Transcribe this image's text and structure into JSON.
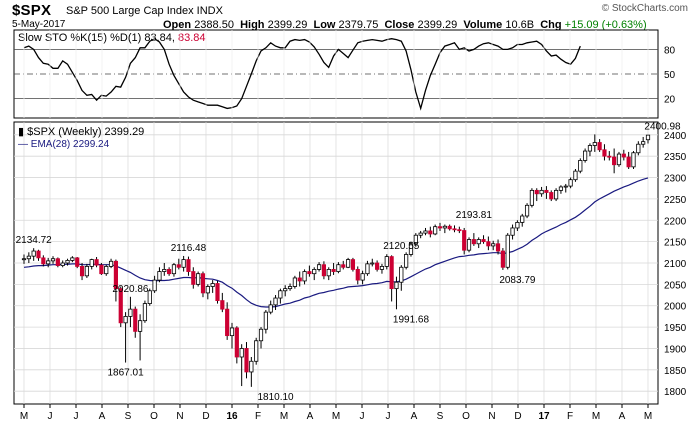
{
  "header": {
    "symbol": "$SPX",
    "name": "S&P 500 Large Cap Index INDX",
    "date": "5-May-2017",
    "copyright": "© StockCharts.com",
    "open_label": "Open",
    "open": "2388.50",
    "high_label": "High",
    "high": "2399.29",
    "low_label": "Low",
    "low": "2379.75",
    "close_label": "Close",
    "close": "2399.29",
    "volume_label": "Volume",
    "volume": "10.6B",
    "chg_label": "Chg",
    "chg": "+15.09 (+0.63%)"
  },
  "colors": {
    "up_body": "#ffffff",
    "down_body": "#cc0033",
    "ema": "#1a1a80",
    "sto": "#000000",
    "sto_value": "#cc0033",
    "grid": "#d8d8d8",
    "axis": "#000000"
  },
  "chart_data": [
    {
      "type": "line",
      "name": "Slow STO",
      "legend": "Slow STO %K(15) %D(1) 83.84,",
      "legend_value": "83.84",
      "ylim": [
        0,
        100
      ],
      "yticks": [
        20,
        50,
        80
      ],
      "values": [
        82,
        84,
        80,
        70,
        63,
        62,
        57,
        57,
        66,
        62,
        52,
        42,
        30,
        24,
        25,
        18,
        24,
        23,
        28,
        35,
        34,
        46,
        63,
        70,
        82,
        82,
        90,
        93,
        89,
        80,
        62,
        48,
        38,
        28,
        22,
        18,
        16,
        14,
        12,
        12,
        12,
        10,
        8,
        9,
        11,
        20,
        35,
        50,
        66,
        78,
        82,
        88,
        84,
        82,
        82,
        90,
        92,
        91,
        92,
        89,
        83,
        74,
        64,
        58,
        72,
        80,
        75,
        70,
        79,
        88,
        90,
        91,
        92,
        91,
        90,
        92,
        93,
        92,
        90,
        78,
        55,
        28,
        8,
        30,
        48,
        62,
        76,
        84,
        86,
        88,
        80,
        82,
        78,
        80,
        84,
        87,
        88,
        86,
        84,
        80,
        80,
        82,
        86,
        86,
        88,
        89,
        90,
        86,
        78,
        72,
        73,
        68,
        64,
        62,
        69,
        84
      ]
    },
    {
      "type": "candlestick",
      "name": "$SPX (Weekly)",
      "legend": "$SPX (Weekly) 2399.29",
      "ema_legend": "EMA(28) 2299.24",
      "ylim": [
        1770,
        2430
      ],
      "yticks": [
        1800,
        1850,
        1900,
        1950,
        2000,
        2050,
        2100,
        2150,
        2200,
        2250,
        2300,
        2350,
        2400
      ],
      "xlabels": [
        "M",
        "J",
        "J",
        "A",
        "S",
        "O",
        "N",
        "D",
        "16",
        "F",
        "M",
        "A",
        "M",
        "J",
        "J",
        "A",
        "S",
        "O",
        "N",
        "D",
        "17",
        "F",
        "M",
        "A",
        "M"
      ],
      "annotations": [
        {
          "text": "2134.72",
          "i": 2,
          "v": 2134.72,
          "pos": "above"
        },
        {
          "text": "2020.86",
          "i": 22,
          "v": 2020.86,
          "pos": "above"
        },
        {
          "text": "1867.01",
          "i": 21,
          "v": 1867.01,
          "pos": "below"
        },
        {
          "text": "2116.48",
          "i": 34,
          "v": 2116.48,
          "pos": "above"
        },
        {
          "text": "1810.10",
          "i": 52,
          "v": 1810.1,
          "pos": "below"
        },
        {
          "text": "2120.55",
          "i": 78,
          "v": 2120.55,
          "pos": "above"
        },
        {
          "text": "1991.68",
          "i": 80,
          "v": 1991.68,
          "pos": "below"
        },
        {
          "text": "2193.81",
          "i": 93,
          "v": 2193.81,
          "pos": "above"
        },
        {
          "text": "2083.79",
          "i": 102,
          "v": 2083.79,
          "pos": "below"
        },
        {
          "text": "2400.98",
          "i": 132,
          "v": 2400.98,
          "pos": "above"
        }
      ],
      "ohlc": [
        [
          2108,
          2120,
          2098,
          2110
        ],
        [
          2110,
          2125,
          2100,
          2116
        ],
        [
          2116,
          2134.72,
          2105,
          2128
        ],
        [
          2128,
          2131,
          2105,
          2112
        ],
        [
          2112,
          2118,
          2092,
          2098
        ],
        [
          2098,
          2112,
          2090,
          2105
        ],
        [
          2105,
          2116,
          2098,
          2110
        ],
        [
          2110,
          2113,
          2090,
          2094
        ],
        [
          2094,
          2106,
          2090,
          2100
        ],
        [
          2100,
          2110,
          2094,
          2106
        ],
        [
          2106,
          2116,
          2102,
          2112
        ],
        [
          2112,
          2114,
          2088,
          2092
        ],
        [
          2092,
          2100,
          2060,
          2070
        ],
        [
          2070,
          2098,
          2065,
          2092
        ],
        [
          2092,
          2110,
          2085,
          2108
        ],
        [
          2108,
          2114,
          2090,
          2095
        ],
        [
          2095,
          2100,
          2072,
          2075
        ],
        [
          2075,
          2096,
          2070,
          2092
        ],
        [
          2092,
          2110,
          2088,
          2104
        ],
        [
          2104,
          2108,
          2010,
          2040
        ],
        [
          2040,
          2045,
          1950,
          1960
        ],
        [
          1960,
          1985,
          1867.01,
          1975
        ],
        [
          1975,
          2020.86,
          1950,
          1992
        ],
        [
          1992,
          1998,
          1925,
          1940
        ],
        [
          1940,
          1980,
          1872,
          1965
        ],
        [
          1965,
          2012,
          1960,
          2005
        ],
        [
          2005,
          2040,
          2000,
          2035
        ],
        [
          2035,
          2070,
          2030,
          2060
        ],
        [
          2060,
          2090,
          2055,
          2080
        ],
        [
          2080,
          2100,
          2070,
          2085
        ],
        [
          2085,
          2090,
          2070,
          2075
        ],
        [
          2075,
          2100,
          2068,
          2096
        ],
        [
          2096,
          2110,
          2085,
          2090
        ],
        [
          2090,
          2116.48,
          2080,
          2108
        ],
        [
          2108,
          2115,
          2070,
          2080
        ],
        [
          2080,
          2090,
          2040,
          2050
        ],
        [
          2050,
          2080,
          2045,
          2075
        ],
        [
          2075,
          2080,
          2020,
          2030
        ],
        [
          2030,
          2050,
          2015,
          2045
        ],
        [
          2045,
          2060,
          2030,
          2052
        ],
        [
          2052,
          2058,
          2005,
          2012
        ],
        [
          2012,
          2030,
          1985,
          1992
        ],
        [
          1992,
          2008,
          1920,
          1930
        ],
        [
          1930,
          1960,
          1900,
          1948
        ],
        [
          1948,
          1952,
          1865,
          1880
        ],
        [
          1880,
          1910,
          1812,
          1900
        ],
        [
          1900,
          1915,
          1830,
          1845
        ],
        [
          1845,
          1880,
          1810.1,
          1870
        ],
        [
          1870,
          1925,
          1862,
          1918
        ],
        [
          1918,
          1950,
          1900,
          1945
        ],
        [
          1945,
          1990,
          1935,
          1985
        ],
        [
          1985,
          2012,
          1980,
          2002
        ],
        [
          2002,
          2025,
          1990,
          2018
        ],
        [
          2018,
          2040,
          2005,
          2035
        ],
        [
          2035,
          2048,
          2022,
          2040
        ],
        [
          2040,
          2052,
          2035,
          2045
        ],
        [
          2045,
          2070,
          2040,
          2065
        ],
        [
          2065,
          2080,
          2045,
          2058
        ],
        [
          2058,
          2085,
          2050,
          2080
        ],
        [
          2080,
          2094,
          2068,
          2075
        ],
        [
          2075,
          2090,
          2060,
          2085
        ],
        [
          2085,
          2102,
          2080,
          2096
        ],
        [
          2096,
          2104,
          2062,
          2070
        ],
        [
          2070,
          2090,
          2060,
          2085
        ],
        [
          2085,
          2100,
          2072,
          2080
        ],
        [
          2080,
          2102,
          2076,
          2096
        ],
        [
          2096,
          2105,
          2085,
          2090
        ],
        [
          2090,
          2112,
          2088,
          2108
        ],
        [
          2108,
          2112,
          2080,
          2085
        ],
        [
          2085,
          2092,
          2050,
          2060
        ],
        [
          2060,
          2082,
          2050,
          2075
        ],
        [
          2075,
          2105,
          2070,
          2098
        ],
        [
          2098,
          2110,
          2092,
          2100
        ],
        [
          2100,
          2106,
          2080,
          2085
        ],
        [
          2085,
          2098,
          2075,
          2092
        ],
        [
          2092,
          2120.55,
          2085,
          2115
        ],
        [
          2115,
          2118,
          2010,
          2040
        ],
        [
          2040,
          2068,
          1991.68,
          2055
        ],
        [
          2055,
          2095,
          2035,
          2090
        ],
        [
          2090,
          2125,
          2085,
          2120
        ],
        [
          2120,
          2150,
          2115,
          2145
        ],
        [
          2145,
          2170,
          2138,
          2165
        ],
        [
          2165,
          2175,
          2158,
          2170
        ],
        [
          2170,
          2182,
          2165,
          2175
        ],
        [
          2175,
          2185,
          2160,
          2168
        ],
        [
          2168,
          2190,
          2165,
          2185
        ],
        [
          2185,
          2193.81,
          2175,
          2182
        ],
        [
          2182,
          2190,
          2170,
          2186
        ],
        [
          2186,
          2190,
          2176,
          2180
        ],
        [
          2180,
          2188,
          2172,
          2178
        ],
        [
          2178,
          2185,
          2170,
          2176
        ],
        [
          2176,
          2182,
          2120,
          2130
        ],
        [
          2130,
          2160,
          2125,
          2155
        ],
        [
          2155,
          2170,
          2140,
          2145
        ],
        [
          2145,
          2160,
          2135,
          2155
        ],
        [
          2155,
          2165,
          2145,
          2150
        ],
        [
          2150,
          2162,
          2130,
          2140
        ],
        [
          2140,
          2152,
          2130,
          2145
        ],
        [
          2145,
          2155,
          2120,
          2128
        ],
        [
          2128,
          2135,
          2083.79,
          2090
        ],
        [
          2090,
          2170,
          2085,
          2165
        ],
        [
          2165,
          2190,
          2155,
          2182
        ],
        [
          2182,
          2200,
          2175,
          2195
        ],
        [
          2195,
          2215,
          2185,
          2210
        ],
        [
          2210,
          2240,
          2205,
          2235
        ],
        [
          2235,
          2275,
          2230,
          2270
        ],
        [
          2270,
          2275,
          2245,
          2262
        ],
        [
          2262,
          2278,
          2255,
          2270
        ],
        [
          2270,
          2280,
          2250,
          2265
        ],
        [
          2265,
          2270,
          2245,
          2250
        ],
        [
          2250,
          2275,
          2245,
          2270
        ],
        [
          2270,
          2282,
          2262,
          2278
        ],
        [
          2278,
          2285,
          2265,
          2280
        ],
        [
          2280,
          2300,
          2275,
          2295
        ],
        [
          2295,
          2320,
          2290,
          2315
        ],
        [
          2315,
          2345,
          2310,
          2340
        ],
        [
          2340,
          2368,
          2335,
          2362
        ],
        [
          2362,
          2380,
          2350,
          2375
        ],
        [
          2375,
          2400.98,
          2360,
          2382
        ],
        [
          2382,
          2390,
          2360,
          2365
        ],
        [
          2365,
          2378,
          2340,
          2350
        ],
        [
          2350,
          2362,
          2340,
          2348
        ],
        [
          2348,
          2368,
          2310,
          2330
        ],
        [
          2330,
          2360,
          2325,
          2355
        ],
        [
          2355,
          2365,
          2340,
          2348
        ],
        [
          2348,
          2360,
          2320,
          2325
        ],
        [
          2325,
          2362,
          2320,
          2358
        ],
        [
          2358,
          2385,
          2352,
          2378
        ],
        [
          2378,
          2395,
          2370,
          2384
        ],
        [
          2388.5,
          2399.29,
          2379.75,
          2399.29
        ]
      ],
      "ema": [
        2090,
        2091,
        2093,
        2094,
        2094,
        2095,
        2096,
        2096,
        2097,
        2097,
        2098,
        2098,
        2096,
        2096,
        2097,
        2097,
        2096,
        2096,
        2096,
        2093,
        2088,
        2083,
        2078,
        2071,
        2065,
        2061,
        2059,
        2058,
        2059,
        2059,
        2060,
        2062,
        2064,
        2066,
        2066,
        2065,
        2066,
        2064,
        2063,
        2062,
        2059,
        2055,
        2047,
        2041,
        2032,
        2024,
        2014,
        2006,
        2001,
        1998,
        1997,
        1997,
        1998,
        2001,
        2004,
        2006,
        2010,
        2013,
        2018,
        2021,
        2025,
        2029,
        2031,
        2034,
        2036,
        2039,
        2041,
        2044,
        2045,
        2046,
        2047,
        2049,
        2051,
        2052,
        2054,
        2057,
        2056,
        2056,
        2058,
        2062,
        2068,
        2074,
        2080,
        2086,
        2090,
        2096,
        2100,
        2104,
        2108,
        2112,
        2115,
        2116,
        2118,
        2119,
        2121,
        2122,
        2123,
        2124,
        2124,
        2122,
        2124,
        2127,
        2132,
        2137,
        2144,
        2153,
        2160,
        2168,
        2174,
        2179,
        2184,
        2190,
        2195,
        2201,
        2207,
        2215,
        2224,
        2233,
        2243,
        2250,
        2256,
        2262,
        2268,
        2273,
        2278,
        2282,
        2287,
        2292,
        2296,
        2299.24
      ]
    }
  ]
}
